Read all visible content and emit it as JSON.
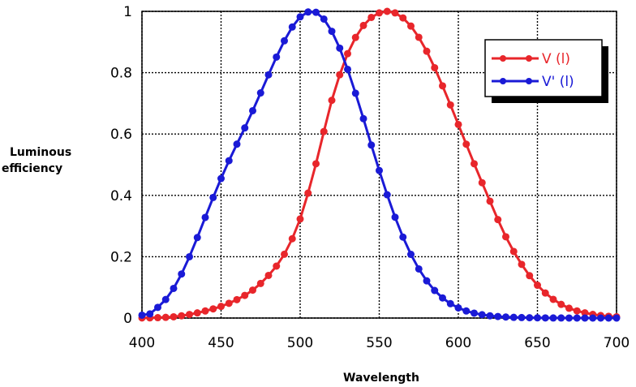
{
  "chart_data": {
    "type": "line",
    "xlabel": "Wavelength",
    "ylabel_lines": [
      "Luminous",
      "efficiency"
    ],
    "xlim": [
      400,
      700
    ],
    "ylim": [
      0,
      1
    ],
    "xticks": [
      "400",
      "450",
      "500",
      "550",
      "600",
      "650",
      "700"
    ],
    "yticks": [
      "0",
      "0.2",
      "0.4",
      "0.6",
      "0.8",
      "1"
    ],
    "grid": true,
    "legend_position": "top-right",
    "x": [
      400,
      405,
      410,
      415,
      420,
      425,
      430,
      435,
      440,
      445,
      450,
      455,
      460,
      465,
      470,
      475,
      480,
      485,
      490,
      495,
      500,
      505,
      510,
      515,
      520,
      525,
      530,
      535,
      540,
      545,
      550,
      555,
      560,
      565,
      570,
      575,
      580,
      585,
      590,
      595,
      600,
      605,
      610,
      615,
      620,
      625,
      630,
      635,
      640,
      645,
      650,
      655,
      660,
      665,
      670,
      675,
      680,
      685,
      690,
      695,
      700
    ],
    "series": [
      {
        "name": "V (l)",
        "color": "#e8262b",
        "values": [
          0.0004,
          0.0006,
          0.0012,
          0.0022,
          0.004,
          0.0073,
          0.0116,
          0.0168,
          0.023,
          0.0298,
          0.038,
          0.048,
          0.06,
          0.0739,
          0.091,
          0.1126,
          0.139,
          0.1693,
          0.208,
          0.2586,
          0.323,
          0.4073,
          0.503,
          0.6082,
          0.71,
          0.7932,
          0.862,
          0.9149,
          0.954,
          0.9803,
          0.995,
          1.0,
          0.995,
          0.9786,
          0.952,
          0.9154,
          0.87,
          0.8163,
          0.757,
          0.6949,
          0.631,
          0.5668,
          0.503,
          0.4412,
          0.381,
          0.321,
          0.265,
          0.217,
          0.175,
          0.1382,
          0.107,
          0.0816,
          0.061,
          0.0446,
          0.032,
          0.0232,
          0.017,
          0.0119,
          0.0082,
          0.0057,
          0.0041
        ]
      },
      {
        "name": "V' (l)",
        "color": "#1a1ad6",
        "values": [
          0.0093,
          0.0135,
          0.0348,
          0.0605,
          0.0966,
          0.1436,
          0.1998,
          0.2625,
          0.3281,
          0.3931,
          0.455,
          0.513,
          0.567,
          0.62,
          0.676,
          0.734,
          0.793,
          0.851,
          0.904,
          0.949,
          0.982,
          0.998,
          0.997,
          0.975,
          0.935,
          0.88,
          0.811,
          0.733,
          0.65,
          0.564,
          0.481,
          0.402,
          0.3288,
          0.2639,
          0.2076,
          0.1602,
          0.1212,
          0.0899,
          0.0655,
          0.0469,
          0.0332,
          0.0231,
          0.0159,
          0.0109,
          0.0074,
          0.005,
          0.0033,
          0.0022,
          0.0015,
          0.001,
          0.0007,
          0.0004,
          0.0003,
          0.0002,
          0.0001,
          0.0001,
          0.0,
          0.0,
          0.0,
          0.0,
          0.0
        ]
      }
    ]
  }
}
